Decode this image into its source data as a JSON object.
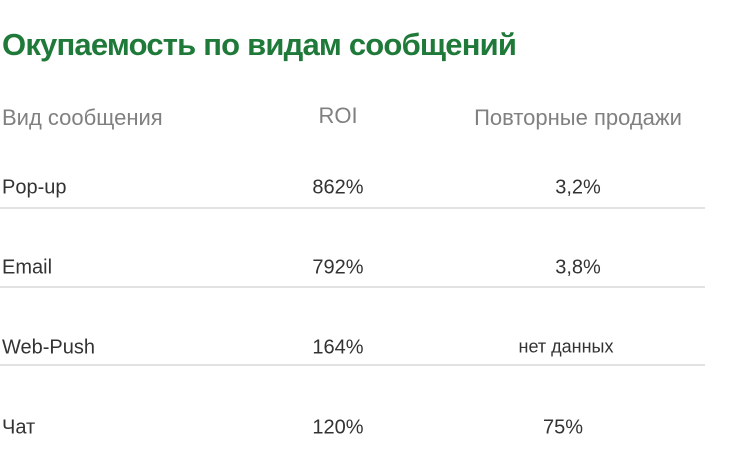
{
  "title": "Окупаемость по видам сообщений",
  "colors": {
    "title": "#1f7a3a",
    "header_text": "#808080",
    "body_text": "#333333",
    "divider": "#e2e2e2"
  },
  "table": {
    "headers": [
      "Вид сообщения",
      "ROI",
      "Повторные продажи"
    ],
    "rows": [
      [
        "Pop-up",
        "862%",
        "3,2%"
      ],
      [
        "Email",
        "792%",
        "3,8%"
      ],
      [
        "Web-Push",
        "164%",
        "нет данных"
      ],
      [
        "Чат",
        "120%",
        "75%"
      ]
    ]
  }
}
